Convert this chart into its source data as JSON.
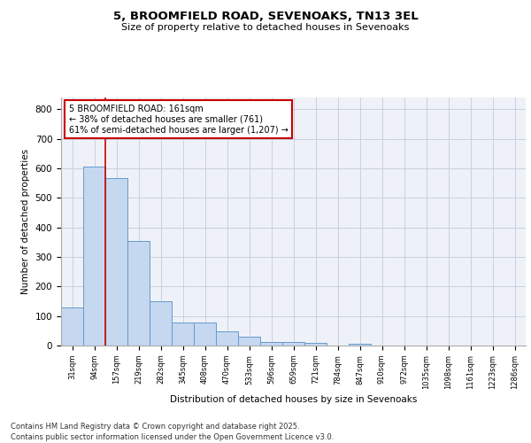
{
  "title1": "5, BROOMFIELD ROAD, SEVENOAKS, TN13 3EL",
  "title2": "Size of property relative to detached houses in Sevenoaks",
  "xlabel": "Distribution of detached houses by size in Sevenoaks",
  "ylabel": "Number of detached properties",
  "bar_labels": [
    "31sqm",
    "94sqm",
    "157sqm",
    "219sqm",
    "282sqm",
    "345sqm",
    "408sqm",
    "470sqm",
    "533sqm",
    "596sqm",
    "659sqm",
    "721sqm",
    "784sqm",
    "847sqm",
    "910sqm",
    "972sqm",
    "1035sqm",
    "1098sqm",
    "1161sqm",
    "1223sqm",
    "1286sqm"
  ],
  "bar_values": [
    130,
    607,
    567,
    355,
    150,
    77,
    77,
    48,
    31,
    12,
    12,
    8,
    0,
    5,
    0,
    0,
    0,
    0,
    0,
    0,
    0
  ],
  "bar_color": "#c5d8f0",
  "bar_edge_color": "#6699cc",
  "vline_x_idx": 2,
  "vline_color": "#cc0000",
  "annotation_text": "5 BROOMFIELD ROAD: 161sqm\n← 38% of detached houses are smaller (761)\n61% of semi-detached houses are larger (1,207) →",
  "annotation_box_color": "white",
  "annotation_box_edge": "#cc0000",
  "ylim": [
    0,
    840
  ],
  "yticks": [
    0,
    100,
    200,
    300,
    400,
    500,
    600,
    700,
    800
  ],
  "footer": "Contains HM Land Registry data © Crown copyright and database right 2025.\nContains public sector information licensed under the Open Government Licence v3.0.",
  "bg_color": "#eef2f8",
  "grid_color": "#c8d0e0"
}
